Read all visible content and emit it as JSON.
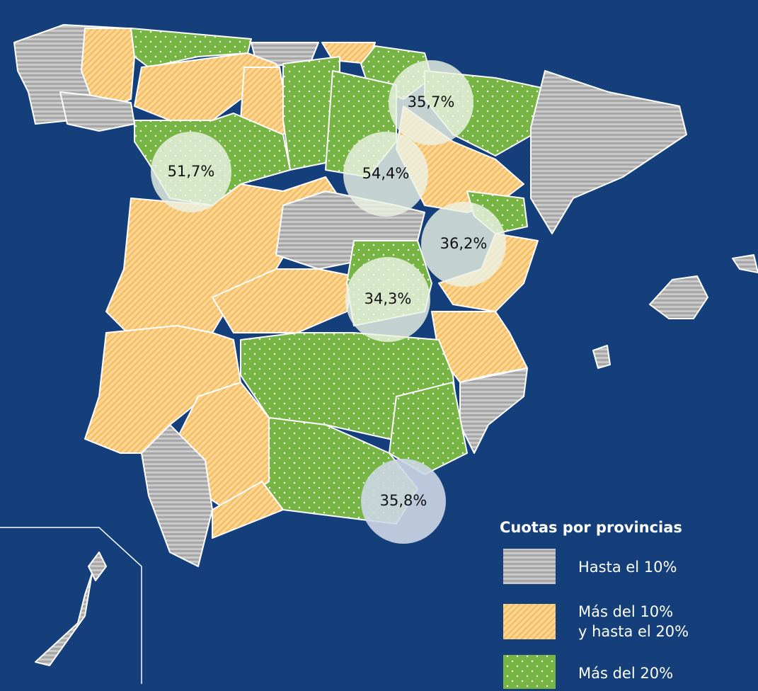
{
  "legend": {
    "title": "Cuotas por provincias",
    "items": [
      {
        "label": "Hasta el 10%"
      },
      {
        "label": "Más del 10%",
        "label2": "y hasta el 20%"
      },
      {
        "label": "Más del 20%"
      }
    ]
  },
  "highlights": [
    {
      "label": "35,7%"
    },
    {
      "label": "51,7%"
    },
    {
      "label": "54,4%"
    },
    {
      "label": "36,2%"
    },
    {
      "label": "34,3%"
    },
    {
      "label": "35,8%"
    }
  ]
}
